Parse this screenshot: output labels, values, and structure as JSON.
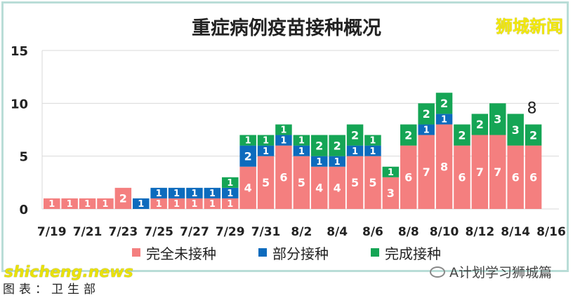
{
  "title": "重症病例疫苗接种概况",
  "brand": "狮城新闻",
  "watermark_source": "shicheng.news",
  "caption": "图表：卫生部",
  "wechat_label": "A计划学习狮城篇",
  "colors": {
    "unvaccinated": "#f47f7f",
    "partial": "#0d6bbd",
    "full": "#15a555",
    "frame": "#b9ddd7",
    "grid": "#d9d9d9"
  },
  "chart_data": {
    "type": "bar",
    "stacked": true,
    "title": "重症病例疫苗接种概况",
    "ylim": [
      0,
      15
    ],
    "yticks": [
      0,
      5,
      10,
      15
    ],
    "grid": "horizontal",
    "legend_position": "bottom",
    "categories": [
      "7/19",
      "7/20",
      "7/21",
      "7/22",
      "7/23",
      "7/24",
      "7/25",
      "7/26",
      "7/27",
      "7/28",
      "7/29",
      "7/30",
      "7/31",
      "8/1",
      "8/2",
      "8/3",
      "8/4",
      "8/5",
      "8/6",
      "8/7",
      "8/8",
      "8/9",
      "8/10",
      "8/11",
      "8/12",
      "8/13",
      "8/14",
      "8/15"
    ],
    "xtick_labels": [
      "7/19",
      "7/21",
      "7/23",
      "7/25",
      "7/27",
      "7/29",
      "7/31",
      "8/2",
      "8/4",
      "8/6",
      "8/8",
      "8/10",
      "8/12",
      "8/14",
      "8/16"
    ],
    "series": [
      {
        "name": "完全未接种",
        "color": "#f47f7f",
        "values": [
          1,
          1,
          1,
          1,
          2,
          0,
          1,
          1,
          1,
          1,
          1,
          4,
          5,
          6,
          5,
          4,
          4,
          5,
          5,
          3,
          6,
          7,
          8,
          6,
          7,
          7,
          6,
          6
        ]
      },
      {
        "name": "部分接种",
        "color": "#0d6bbd",
        "values": [
          0,
          0,
          0,
          0,
          0,
          1,
          1,
          1,
          1,
          1,
          1,
          2,
          1,
          1,
          1,
          1,
          1,
          1,
          1,
          0,
          0,
          1,
          1,
          0,
          0,
          0,
          0,
          0
        ]
      },
      {
        "name": "完成接种",
        "color": "#15a555",
        "values": [
          0,
          0,
          0,
          0,
          0,
          0,
          0,
          0,
          0,
          0,
          1,
          1,
          1,
          1,
          1,
          2,
          2,
          2,
          1,
          1,
          2,
          2,
          2,
          2,
          2,
          3,
          3,
          2
        ]
      }
    ],
    "annotations": [
      {
        "category": "8/15",
        "text": "8"
      }
    ]
  }
}
